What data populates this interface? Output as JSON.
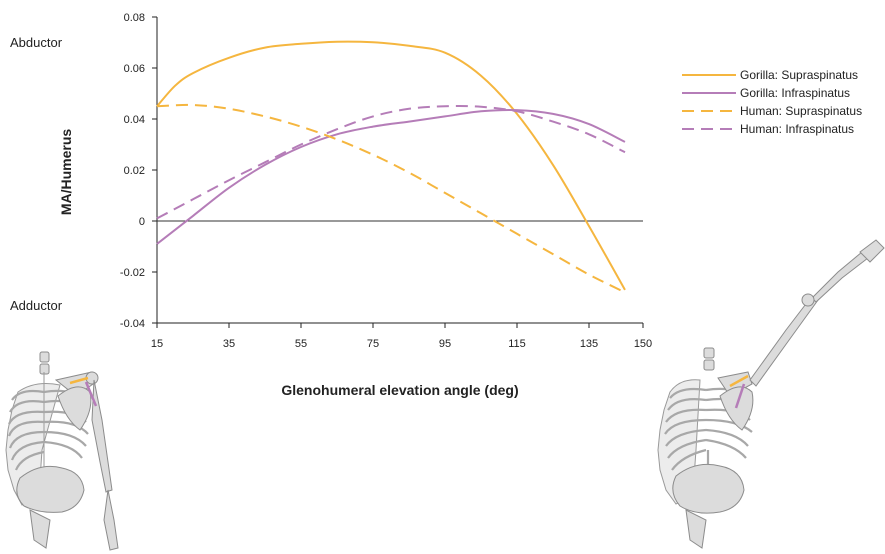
{
  "chart_data": {
    "type": "line",
    "xlabel": "Glenohumeral elevation angle (deg)",
    "ylabel": "MA/Humerus",
    "xlim": [
      15,
      150
    ],
    "ylim": [
      -0.04,
      0.08
    ],
    "x_ticks": [
      "15",
      "35",
      "55",
      "75",
      "95",
      "115",
      "135",
      "150"
    ],
    "y_ticks": [
      "0.08",
      "0.06",
      "0.04",
      "0.02",
      "0",
      "-0.02",
      "-0.04"
    ],
    "annotations": {
      "top": "Abductor",
      "bottom": "Adductor"
    },
    "legend_position": "right",
    "series": [
      {
        "name": "Gorilla: Supraspinatus",
        "color": "#f5b63f",
        "dash": false,
        "x": [
          15,
          20,
          25,
          35,
          45,
          55,
          65,
          75,
          85,
          95,
          105,
          115,
          125,
          135,
          145
        ],
        "y": [
          0.045,
          0.053,
          0.058,
          0.064,
          0.068,
          0.0695,
          0.0703,
          0.0701,
          0.0687,
          0.066,
          0.057,
          0.042,
          0.022,
          -0.002,
          -0.027
        ]
      },
      {
        "name": "Gorilla: Infraspinatus",
        "color": "#b57db8",
        "dash": false,
        "x": [
          15,
          25,
          35,
          45,
          55,
          65,
          75,
          85,
          95,
          105,
          115,
          125,
          135,
          145
        ],
        "y": [
          -0.009,
          0.002,
          0.013,
          0.022,
          0.029,
          0.034,
          0.037,
          0.039,
          0.041,
          0.043,
          0.0435,
          0.042,
          0.038,
          0.031
        ]
      },
      {
        "name": "Human: Supraspinatus",
        "color": "#f5b63f",
        "dash": true,
        "x": [
          15,
          25,
          35,
          45,
          55,
          65,
          75,
          85,
          95,
          105,
          115,
          125,
          135,
          145
        ],
        "y": [
          0.045,
          0.0455,
          0.044,
          0.041,
          0.037,
          0.032,
          0.026,
          0.019,
          0.011,
          0.003,
          -0.005,
          -0.013,
          -0.021,
          -0.028
        ]
      },
      {
        "name": "Human: Infraspinatus",
        "color": "#b57db8",
        "dash": true,
        "x": [
          15,
          25,
          35,
          45,
          55,
          65,
          75,
          85,
          95,
          105,
          115,
          125,
          135,
          145
        ],
        "y": [
          0.001,
          0.0085,
          0.016,
          0.023,
          0.03,
          0.036,
          0.041,
          0.044,
          0.045,
          0.0448,
          0.043,
          0.039,
          0.034,
          0.027
        ]
      }
    ]
  }
}
